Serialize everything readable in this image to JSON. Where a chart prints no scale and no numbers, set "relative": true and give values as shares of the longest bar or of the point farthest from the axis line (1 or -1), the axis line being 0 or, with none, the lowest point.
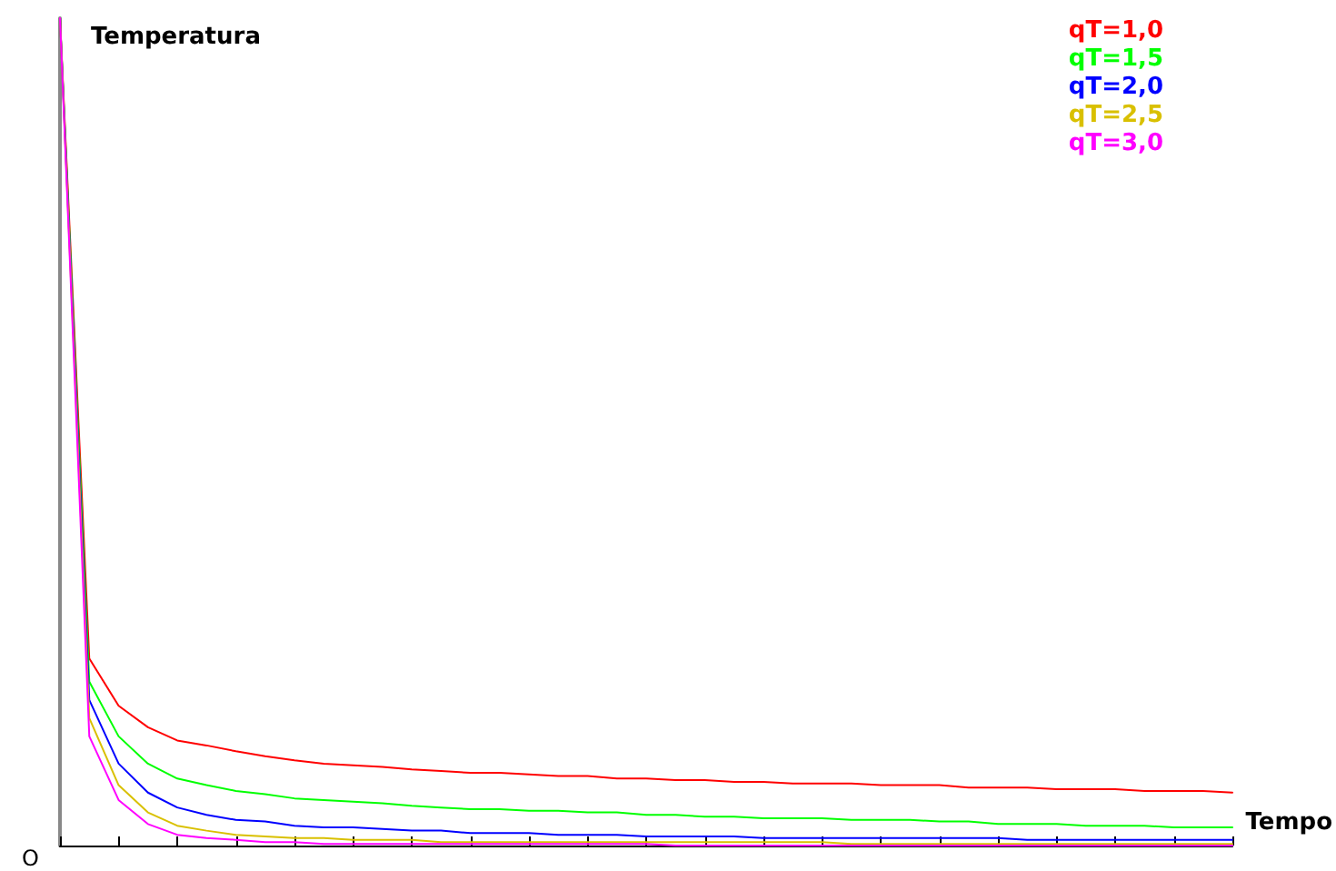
{
  "chart_data": {
    "type": "line",
    "relative": true,
    "xlabel": "Tempo",
    "ylabel": "Temperatura",
    "annotations": [
      "O"
    ],
    "legend": "top right",
    "marker": "none",
    "line_style": "solid",
    "grid": false,
    "categories": [
      null,
      null,
      null,
      null,
      null,
      null,
      null,
      null,
      null,
      null,
      null,
      null,
      null,
      null,
      null,
      null,
      null,
      null,
      null,
      null,
      null,
      null,
      null,
      null,
      null,
      null,
      null,
      null,
      null,
      null,
      null,
      null,
      null,
      null,
      null,
      null,
      null,
      null,
      null,
      null,
      null
    ],
    "series": [
      {
        "name": "qT=1,0",
        "color": "#ff0000",
        "values": [
          1,
          0.226,
          0.169,
          0.143,
          0.127,
          0.121,
          0.114,
          0.108,
          0.103,
          0.099,
          0.097,
          0.095,
          0.092,
          0.09,
          0.088,
          0.088,
          0.086,
          0.084,
          0.084,
          0.081,
          0.081,
          0.079,
          0.079,
          0.077,
          0.077,
          0.075,
          0.075,
          0.075,
          0.073,
          0.073,
          0.073,
          0.07,
          0.07,
          0.07,
          0.068,
          0.068,
          0.068,
          0.066,
          0.066,
          0.066,
          0.064
        ]
      },
      {
        "name": "qT=1,5",
        "color": "#00ff00",
        "values": [
          1,
          0.198,
          0.132,
          0.099,
          0.081,
          0.073,
          0.066,
          0.062,
          0.057,
          0.055,
          0.053,
          0.051,
          0.048,
          0.046,
          0.044,
          0.044,
          0.042,
          0.042,
          0.04,
          0.04,
          0.037,
          0.037,
          0.035,
          0.035,
          0.033,
          0.033,
          0.033,
          0.031,
          0.031,
          0.031,
          0.029,
          0.029,
          0.026,
          0.026,
          0.026,
          0.024,
          0.024,
          0.024,
          0.022,
          0.022,
          0.022
        ]
      },
      {
        "name": "qT=2,0",
        "color": "#0000ff",
        "values": [
          1,
          0.176,
          0.099,
          0.064,
          0.046,
          0.037,
          0.031,
          0.029,
          0.024,
          0.022,
          0.022,
          0.02,
          0.018,
          0.018,
          0.015,
          0.015,
          0.015,
          0.013,
          0.013,
          0.013,
          0.011,
          0.011,
          0.011,
          0.011,
          0.009,
          0.009,
          0.009,
          0.009,
          0.009,
          0.009,
          0.009,
          0.009,
          0.009,
          0.007,
          0.007,
          0.007,
          0.007,
          0.007,
          0.007,
          0.007,
          0.007
        ]
      },
      {
        "name": "qT=2,5",
        "color": "#d9c000",
        "values": [
          1,
          0.154,
          0.073,
          0.04,
          0.024,
          0.018,
          0.013,
          0.011,
          0.009,
          0.009,
          0.007,
          0.007,
          0.007,
          0.004,
          0.004,
          0.004,
          0.004,
          0.004,
          0.004,
          0.004,
          0.004,
          0.004,
          0.004,
          0.004,
          0.004,
          0.004,
          0.004,
          0.002,
          0.002,
          0.002,
          0.002,
          0.002,
          0.002,
          0.002,
          0.002,
          0.002,
          0.002,
          0.002,
          0.002,
          0.002,
          0.002
        ]
      },
      {
        "name": "qT=3,0",
        "color": "#ff00ff",
        "values": [
          1,
          0.132,
          0.055,
          0.026,
          0.013,
          0.009,
          0.007,
          0.004,
          0.004,
          0.002,
          0.002,
          0.002,
          0.002,
          0.002,
          0.002,
          0.002,
          0.002,
          0.002,
          0.002,
          0.002,
          0.002,
          0,
          0,
          0,
          0,
          0,
          0,
          0,
          0,
          0,
          0,
          0,
          0,
          0,
          0,
          0,
          0,
          0,
          0,
          0,
          0
        ]
      }
    ]
  }
}
